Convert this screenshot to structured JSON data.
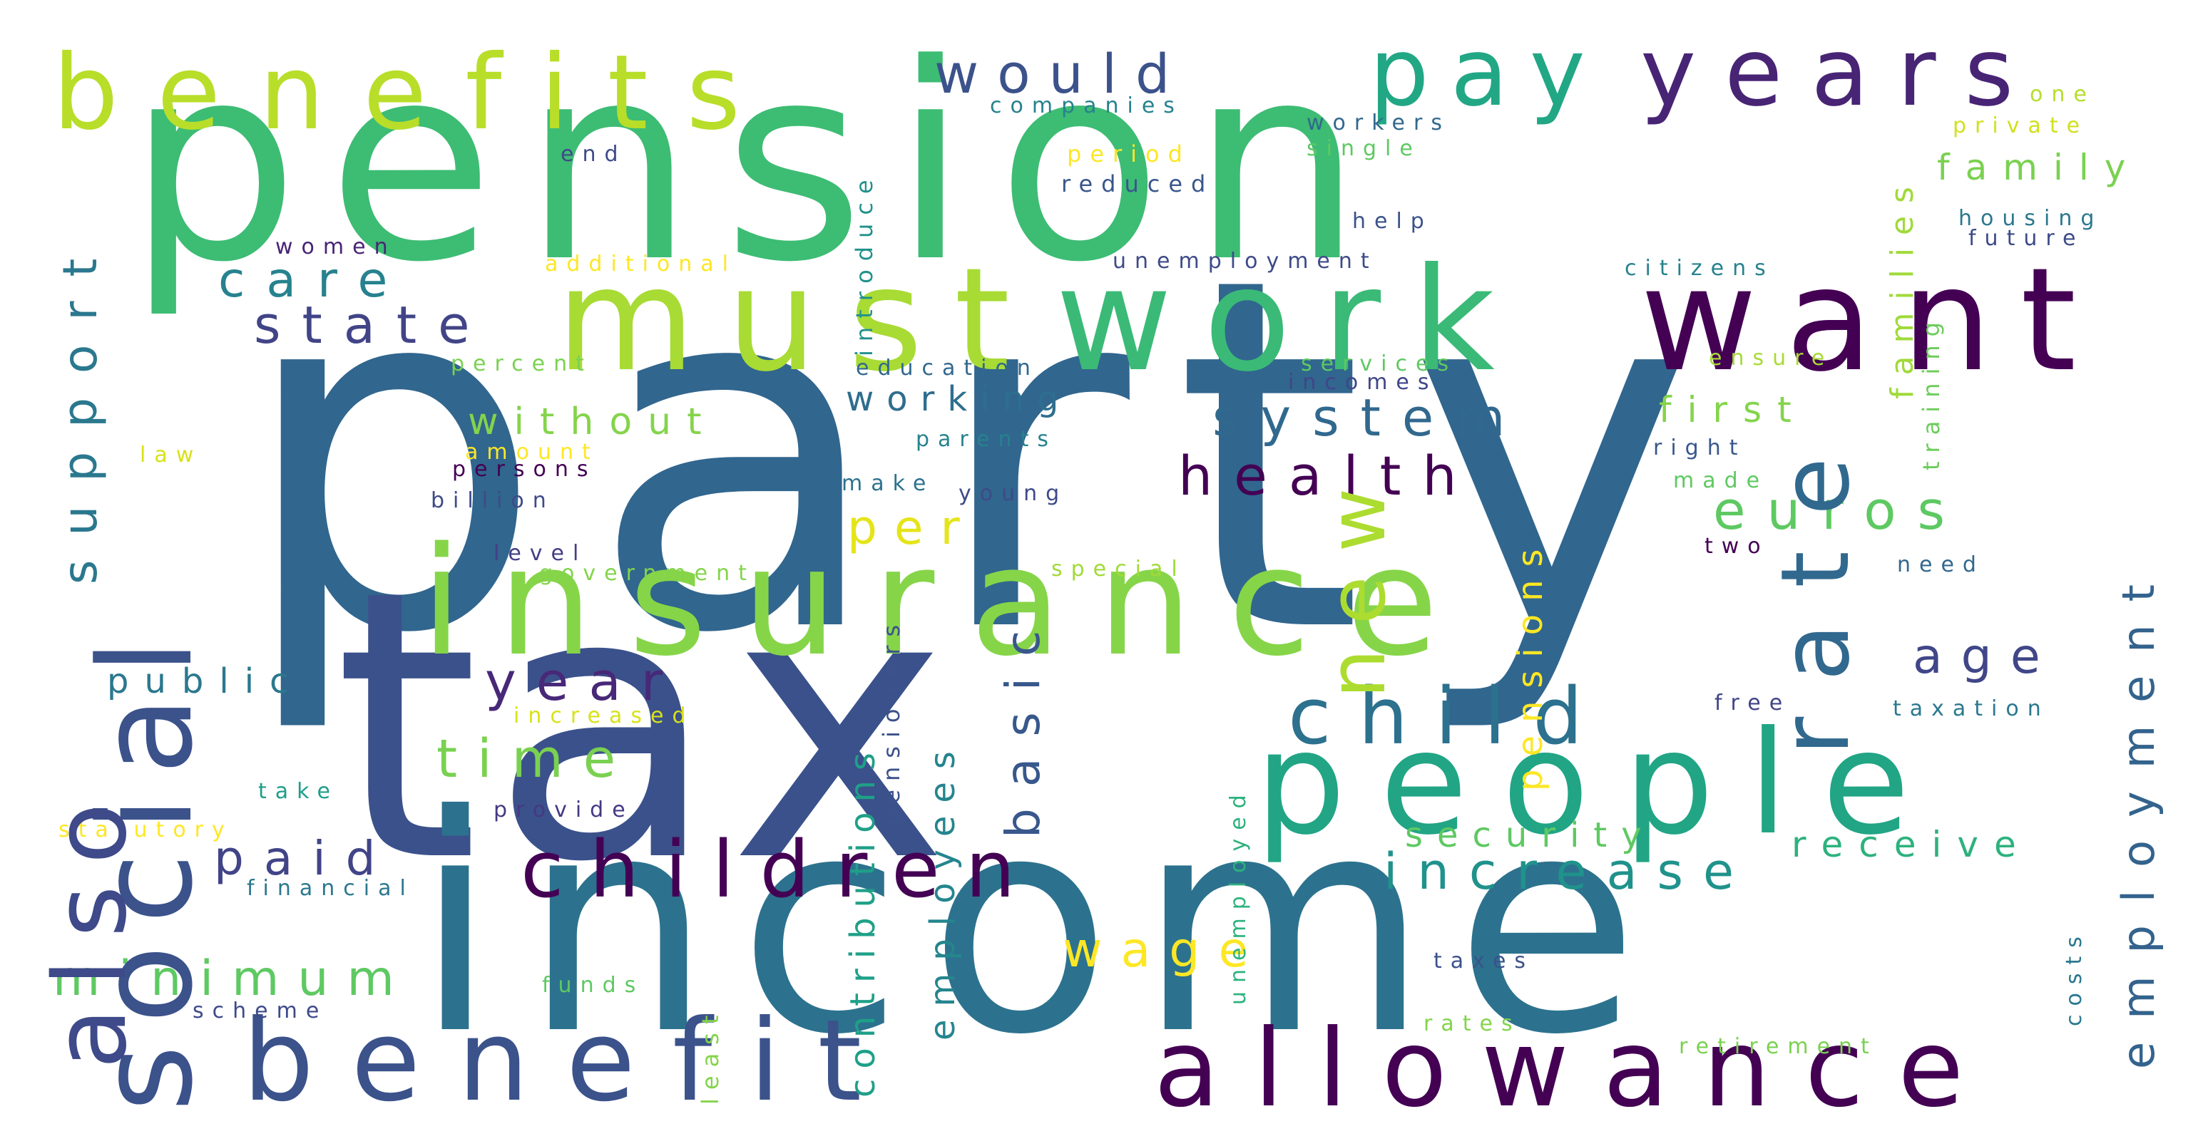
{
  "words": [
    {
      "text": "party",
      "color": "#31668e"
    },
    {
      "text": "pension",
      "color": "#3dbc74"
    },
    {
      "text": "tax",
      "color": "#3b518b"
    },
    {
      "text": "income",
      "color": "#2c728e"
    },
    {
      "text": "insurance",
      "color": "#86d549"
    },
    {
      "text": "must",
      "color": "#a8db34"
    },
    {
      "text": "work",
      "color": "#3aba76"
    },
    {
      "text": "want",
      "color": "#440154"
    },
    {
      "text": "pay",
      "color": "#22a785"
    },
    {
      "text": "years",
      "color": "#482475"
    },
    {
      "text": "benefits",
      "color": "#b8de29"
    },
    {
      "text": "social",
      "color": "#3b528b"
    },
    {
      "text": "also",
      "color": "#3e4a89"
    },
    {
      "text": "support",
      "color": "#2a788e"
    },
    {
      "text": "benefit",
      "color": "#3b528b"
    },
    {
      "text": "allowance",
      "color": "#440154"
    },
    {
      "text": "people",
      "color": "#21a585"
    },
    {
      "text": "children",
      "color": "#440154"
    },
    {
      "text": "rate",
      "color": "#31688e"
    },
    {
      "text": "new",
      "color": "#addc30"
    },
    {
      "text": "employment",
      "color": "#33638d"
    },
    {
      "text": "child",
      "color": "#2c718e"
    },
    {
      "text": "health",
      "color": "#440154"
    },
    {
      "text": "system",
      "color": "#31688e"
    },
    {
      "text": "euros",
      "color": "#5ec962"
    },
    {
      "text": "state",
      "color": "#414487"
    },
    {
      "text": "care",
      "color": "#26828e"
    },
    {
      "text": "would",
      "color": "#3b528b"
    },
    {
      "text": "basic",
      "color": "#38588c"
    },
    {
      "text": "year",
      "color": "#482878"
    },
    {
      "text": "time",
      "color": "#7ad151"
    },
    {
      "text": "paid",
      "color": "#414487"
    },
    {
      "text": "minimum",
      "color": "#5ec962"
    },
    {
      "text": "increase",
      "color": "#20928c"
    },
    {
      "text": "security",
      "color": "#5ec962"
    },
    {
      "text": "receive",
      "color": "#2db27d"
    },
    {
      "text": "wage",
      "color": "#fde725"
    },
    {
      "text": "age",
      "color": "#404688"
    },
    {
      "text": "family",
      "color": "#7ad151"
    },
    {
      "text": "families",
      "color": "#a0da39"
    },
    {
      "text": "first",
      "color": "#84d44b"
    },
    {
      "text": "without",
      "color": "#84d44b"
    },
    {
      "text": "working",
      "color": "#2e6e8e"
    },
    {
      "text": "per",
      "color": "#e5e419"
    },
    {
      "text": "contributions",
      "color": "#1fa088"
    },
    {
      "text": "employees",
      "color": "#25858e"
    },
    {
      "text": "pensions",
      "color": "#fde725"
    },
    {
      "text": "public",
      "color": "#2a788e"
    },
    {
      "text": "companies",
      "color": "#26828e"
    },
    {
      "text": "workers",
      "color": "#31688e"
    },
    {
      "text": "single",
      "color": "#5ec962"
    },
    {
      "text": "end",
      "color": "#3e4a89"
    },
    {
      "text": "period",
      "color": "#fde725"
    },
    {
      "text": "reduced",
      "color": "#39568c"
    },
    {
      "text": "introduce",
      "color": "#21918c"
    },
    {
      "text": "help",
      "color": "#3b528b"
    },
    {
      "text": "one",
      "color": "#b5de2b"
    },
    {
      "text": "private",
      "color": "#d0e11c"
    },
    {
      "text": "housing",
      "color": "#2a788e"
    },
    {
      "text": "future",
      "color": "#3e4a89"
    },
    {
      "text": "women",
      "color": "#482475"
    },
    {
      "text": "additional",
      "color": "#fde725"
    },
    {
      "text": "unemployment",
      "color": "#3e4a89"
    },
    {
      "text": "citizens",
      "color": "#26828e"
    },
    {
      "text": "ensure",
      "color": "#a8db34"
    },
    {
      "text": "training",
      "color": "#6ccd5a"
    },
    {
      "text": "education",
      "color": "#31688e"
    },
    {
      "text": "services",
      "color": "#5ec962"
    },
    {
      "text": "incomes",
      "color": "#404688"
    },
    {
      "text": "percent",
      "color": "#7ad151"
    },
    {
      "text": "amount",
      "color": "#fde725"
    },
    {
      "text": "law",
      "color": "#d8e219"
    },
    {
      "text": "persons",
      "color": "#440154"
    },
    {
      "text": "parents",
      "color": "#26828e"
    },
    {
      "text": "right",
      "color": "#39568c"
    },
    {
      "text": "made",
      "color": "#5ec962"
    },
    {
      "text": "billion",
      "color": "#3e4a89"
    },
    {
      "text": "make",
      "color": "#2c728e"
    },
    {
      "text": "young",
      "color": "#3e4a89"
    },
    {
      "text": "level",
      "color": "#433e85"
    },
    {
      "text": "government",
      "color": "#84d44b"
    },
    {
      "text": "special",
      "color": "#a0da39"
    },
    {
      "text": "pensioners",
      "color": "#3b528b"
    },
    {
      "text": "two",
      "color": "#440154"
    },
    {
      "text": "need",
      "color": "#31688e"
    },
    {
      "text": "increased",
      "color": "#d8e219"
    },
    {
      "text": "free",
      "color": "#414487"
    },
    {
      "text": "taxation",
      "color": "#2a788e"
    },
    {
      "text": "take",
      "color": "#1f9e89"
    },
    {
      "text": "provide",
      "color": "#443983"
    },
    {
      "text": "statutory",
      "color": "#fde725"
    },
    {
      "text": "unemployed",
      "color": "#2db27d"
    },
    {
      "text": "financial",
      "color": "#2a788e"
    },
    {
      "text": "funds",
      "color": "#5ec962"
    },
    {
      "text": "taxes",
      "color": "#3b528b"
    },
    {
      "text": "costs",
      "color": "#2a788e"
    },
    {
      "text": "scheme",
      "color": "#3e4a89"
    },
    {
      "text": "least",
      "color": "#84d44b"
    },
    {
      "text": "rates",
      "color": "#84d44b"
    },
    {
      "text": "retirement",
      "color": "#7ad151"
    }
  ]
}
